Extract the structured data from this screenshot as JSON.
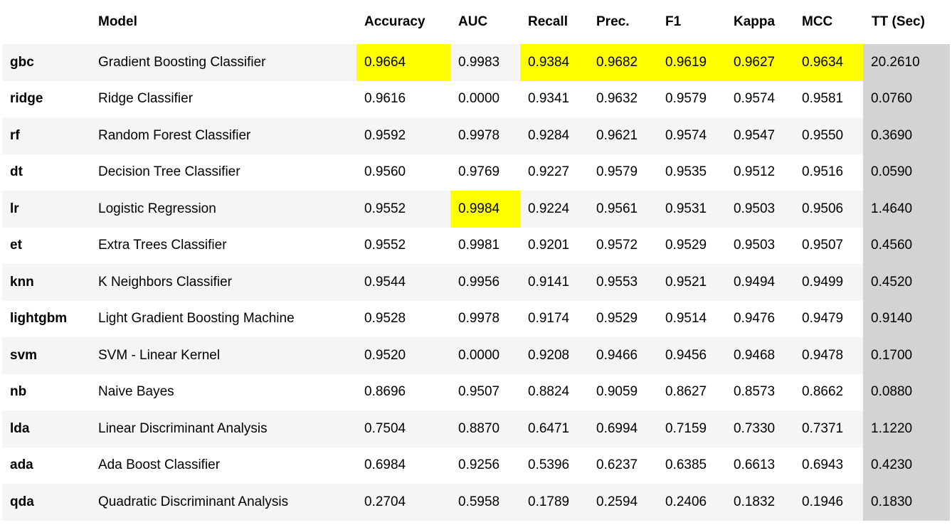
{
  "table": {
    "columns": [
      "",
      "Model",
      "Accuracy",
      "AUC",
      "Recall",
      "Prec.",
      "F1",
      "Kappa",
      "MCC",
      "TT (Sec)"
    ],
    "highlight_color": "#ffff00",
    "tt_column_color": "#d3d3d3",
    "rows": [
      {
        "key": "gbc",
        "model": "Gradient Boosting Classifier",
        "accuracy": "0.9664",
        "auc": "0.9983",
        "recall": "0.9384",
        "prec": "0.9682",
        "f1": "0.9619",
        "kappa": "0.9627",
        "mcc": "0.9634",
        "tt": "20.2610",
        "best": [
          "accuracy",
          "recall",
          "prec",
          "f1",
          "kappa",
          "mcc"
        ]
      },
      {
        "key": "ridge",
        "model": "Ridge Classifier",
        "accuracy": "0.9616",
        "auc": "0.0000",
        "recall": "0.9341",
        "prec": "0.9632",
        "f1": "0.9579",
        "kappa": "0.9574",
        "mcc": "0.9581",
        "tt": "0.0760",
        "best": []
      },
      {
        "key": "rf",
        "model": "Random Forest Classifier",
        "accuracy": "0.9592",
        "auc": "0.9978",
        "recall": "0.9284",
        "prec": "0.9621",
        "f1": "0.9574",
        "kappa": "0.9547",
        "mcc": "0.9550",
        "tt": "0.3690",
        "best": []
      },
      {
        "key": "dt",
        "model": "Decision Tree Classifier",
        "accuracy": "0.9560",
        "auc": "0.9769",
        "recall": "0.9227",
        "prec": "0.9579",
        "f1": "0.9535",
        "kappa": "0.9512",
        "mcc": "0.9516",
        "tt": "0.0590",
        "best": []
      },
      {
        "key": "lr",
        "model": "Logistic Regression",
        "accuracy": "0.9552",
        "auc": "0.9984",
        "recall": "0.9224",
        "prec": "0.9561",
        "f1": "0.9531",
        "kappa": "0.9503",
        "mcc": "0.9506",
        "tt": "1.4640",
        "best": [
          "auc"
        ]
      },
      {
        "key": "et",
        "model": "Extra Trees Classifier",
        "accuracy": "0.9552",
        "auc": "0.9981",
        "recall": "0.9201",
        "prec": "0.9572",
        "f1": "0.9529",
        "kappa": "0.9503",
        "mcc": "0.9507",
        "tt": "0.4560",
        "best": []
      },
      {
        "key": "knn",
        "model": "K Neighbors Classifier",
        "accuracy": "0.9544",
        "auc": "0.9956",
        "recall": "0.9141",
        "prec": "0.9553",
        "f1": "0.9521",
        "kappa": "0.9494",
        "mcc": "0.9499",
        "tt": "0.4520",
        "best": []
      },
      {
        "key": "lightgbm",
        "model": "Light Gradient Boosting Machine",
        "accuracy": "0.9528",
        "auc": "0.9978",
        "recall": "0.9174",
        "prec": "0.9529",
        "f1": "0.9514",
        "kappa": "0.9476",
        "mcc": "0.9479",
        "tt": "0.9140",
        "best": []
      },
      {
        "key": "svm",
        "model": "SVM - Linear Kernel",
        "accuracy": "0.9520",
        "auc": "0.0000",
        "recall": "0.9208",
        "prec": "0.9466",
        "f1": "0.9456",
        "kappa": "0.9468",
        "mcc": "0.9478",
        "tt": "0.1700",
        "best": []
      },
      {
        "key": "nb",
        "model": "Naive Bayes",
        "accuracy": "0.8696",
        "auc": "0.9507",
        "recall": "0.8824",
        "prec": "0.9059",
        "f1": "0.8627",
        "kappa": "0.8573",
        "mcc": "0.8662",
        "tt": "0.0880",
        "best": []
      },
      {
        "key": "lda",
        "model": "Linear Discriminant Analysis",
        "accuracy": "0.7504",
        "auc": "0.8870",
        "recall": "0.6471",
        "prec": "0.6994",
        "f1": "0.7159",
        "kappa": "0.7330",
        "mcc": "0.7371",
        "tt": "1.1220",
        "best": []
      },
      {
        "key": "ada",
        "model": "Ada Boost Classifier",
        "accuracy": "0.6984",
        "auc": "0.9256",
        "recall": "0.5396",
        "prec": "0.6237",
        "f1": "0.6385",
        "kappa": "0.6613",
        "mcc": "0.6943",
        "tt": "0.4230",
        "best": []
      },
      {
        "key": "qda",
        "model": "Quadratic Discriminant Analysis",
        "accuracy": "0.2704",
        "auc": "0.5958",
        "recall": "0.1789",
        "prec": "0.2594",
        "f1": "0.2406",
        "kappa": "0.1832",
        "mcc": "0.1946",
        "tt": "0.1830",
        "best": []
      }
    ]
  }
}
